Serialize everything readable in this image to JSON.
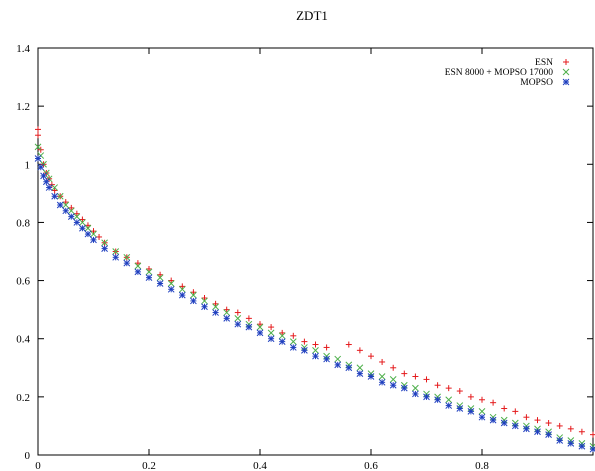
{
  "chart_data": {
    "type": "scatter",
    "title": "ZDT1",
    "xlabel": "",
    "ylabel": "",
    "xlim": [
      0,
      1
    ],
    "ylim": [
      0,
      1.4
    ],
    "xticks": [
      "0",
      "0.2",
      "0.4",
      "0.6",
      "0.8"
    ],
    "yticks": [
      "0",
      "0.2",
      "0.4",
      "0.6",
      "0.8",
      "1",
      "1.2",
      "1.4"
    ],
    "xtick_values": [
      0,
      0.2,
      0.4,
      0.6,
      0.8
    ],
    "ytick_values": [
      0,
      0.2,
      0.4,
      0.6,
      0.8,
      1.0,
      1.2,
      1.4
    ],
    "grid": false,
    "legend": "top-right",
    "series": [
      {
        "name": "ESN",
        "marker": "plus",
        "color": "#e41a1c",
        "x": [
          0.0,
          0.0,
          0.005,
          0.01,
          0.015,
          0.02,
          0.025,
          0.03,
          0.04,
          0.05,
          0.06,
          0.07,
          0.08,
          0.09,
          0.1,
          0.11,
          0.12,
          0.14,
          0.16,
          0.18,
          0.2,
          0.22,
          0.24,
          0.26,
          0.28,
          0.3,
          0.32,
          0.34,
          0.36,
          0.38,
          0.4,
          0.42,
          0.44,
          0.46,
          0.48,
          0.5,
          0.52,
          0.56,
          0.58,
          0.6,
          0.62,
          0.64,
          0.66,
          0.68,
          0.7,
          0.72,
          0.74,
          0.76,
          0.78,
          0.8,
          0.82,
          0.84,
          0.86,
          0.88,
          0.9,
          0.92,
          0.94,
          0.96,
          0.98,
          1.0
        ],
        "y": [
          1.12,
          1.1,
          1.05,
          1.0,
          0.97,
          0.95,
          0.93,
          0.91,
          0.89,
          0.87,
          0.85,
          0.83,
          0.81,
          0.79,
          0.77,
          0.75,
          0.73,
          0.7,
          0.68,
          0.66,
          0.64,
          0.62,
          0.6,
          0.58,
          0.56,
          0.54,
          0.52,
          0.5,
          0.49,
          0.47,
          0.45,
          0.44,
          0.42,
          0.41,
          0.39,
          0.38,
          0.37,
          0.38,
          0.36,
          0.34,
          0.32,
          0.3,
          0.28,
          0.27,
          0.26,
          0.24,
          0.23,
          0.22,
          0.2,
          0.19,
          0.18,
          0.16,
          0.15,
          0.13,
          0.12,
          0.11,
          0.1,
          0.09,
          0.08,
          0.07
        ]
      },
      {
        "name": "ESN 8000 + MOPSO 17000",
        "marker": "x",
        "color": "#4daf4a",
        "x": [
          0.0,
          0.005,
          0.01,
          0.015,
          0.02,
          0.03,
          0.04,
          0.05,
          0.06,
          0.07,
          0.08,
          0.09,
          0.1,
          0.12,
          0.14,
          0.16,
          0.18,
          0.2,
          0.22,
          0.24,
          0.26,
          0.28,
          0.3,
          0.32,
          0.34,
          0.36,
          0.38,
          0.4,
          0.42,
          0.44,
          0.46,
          0.48,
          0.5,
          0.52,
          0.54,
          0.56,
          0.58,
          0.6,
          0.62,
          0.64,
          0.66,
          0.68,
          0.7,
          0.72,
          0.74,
          0.76,
          0.78,
          0.8,
          0.82,
          0.84,
          0.86,
          0.88,
          0.9,
          0.92,
          0.94,
          0.96,
          0.98,
          1.0
        ],
        "y": [
          1.06,
          1.03,
          1.0,
          0.97,
          0.95,
          0.92,
          0.89,
          0.86,
          0.84,
          0.82,
          0.8,
          0.78,
          0.76,
          0.73,
          0.7,
          0.68,
          0.65,
          0.63,
          0.61,
          0.59,
          0.57,
          0.55,
          0.53,
          0.51,
          0.49,
          0.47,
          0.45,
          0.44,
          0.42,
          0.41,
          0.39,
          0.37,
          0.36,
          0.34,
          0.33,
          0.31,
          0.3,
          0.28,
          0.27,
          0.26,
          0.24,
          0.23,
          0.21,
          0.2,
          0.19,
          0.17,
          0.16,
          0.15,
          0.13,
          0.12,
          0.11,
          0.1,
          0.09,
          0.08,
          0.06,
          0.05,
          0.04,
          0.03
        ]
      },
      {
        "name": "MOPSO",
        "marker": "star",
        "color": "#1f3fbf",
        "x": [
          0.0,
          0.005,
          0.01,
          0.015,
          0.02,
          0.03,
          0.04,
          0.05,
          0.06,
          0.07,
          0.08,
          0.09,
          0.1,
          0.12,
          0.14,
          0.16,
          0.18,
          0.2,
          0.22,
          0.24,
          0.26,
          0.28,
          0.3,
          0.32,
          0.34,
          0.36,
          0.38,
          0.4,
          0.42,
          0.44,
          0.46,
          0.48,
          0.5,
          0.52,
          0.54,
          0.56,
          0.58,
          0.6,
          0.62,
          0.64,
          0.66,
          0.68,
          0.7,
          0.72,
          0.74,
          0.76,
          0.78,
          0.8,
          0.82,
          0.84,
          0.86,
          0.88,
          0.9,
          0.92,
          0.94,
          0.96,
          0.98,
          1.0
        ],
        "y": [
          1.02,
          0.99,
          0.96,
          0.94,
          0.92,
          0.89,
          0.86,
          0.84,
          0.82,
          0.8,
          0.78,
          0.76,
          0.74,
          0.71,
          0.68,
          0.66,
          0.63,
          0.61,
          0.59,
          0.57,
          0.55,
          0.53,
          0.51,
          0.49,
          0.47,
          0.45,
          0.44,
          0.42,
          0.4,
          0.39,
          0.37,
          0.36,
          0.34,
          0.33,
          0.31,
          0.3,
          0.28,
          0.27,
          0.25,
          0.24,
          0.23,
          0.21,
          0.2,
          0.19,
          0.17,
          0.16,
          0.15,
          0.13,
          0.12,
          0.11,
          0.1,
          0.09,
          0.08,
          0.07,
          0.05,
          0.04,
          0.03,
          0.02
        ]
      }
    ]
  }
}
